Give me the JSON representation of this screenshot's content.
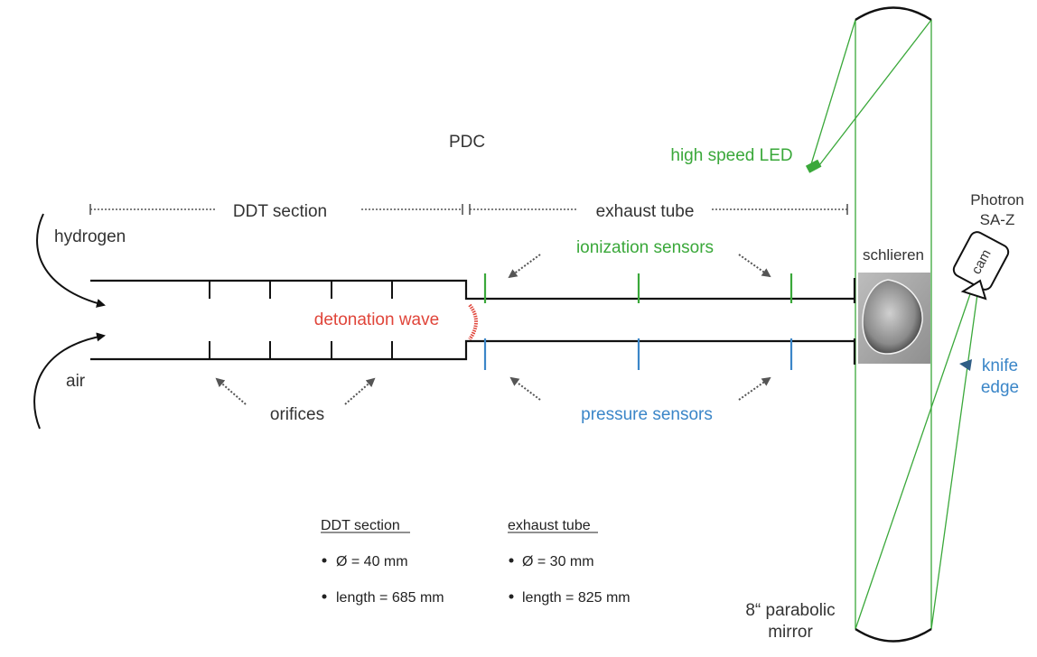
{
  "labels": {
    "pdc": "PDC",
    "ddt_section": "DDT section",
    "exhaust_tube": "exhaust tube",
    "hydrogen": "hydrogen",
    "air": "air",
    "detonation_wave": "detonation wave",
    "orifices": "orifices",
    "ionization_sensors": "ionization sensors",
    "pressure_sensors": "pressure sensors",
    "high_speed_led": "high speed LED",
    "schlieren": "schlieren",
    "camera_line1": "Photron",
    "camera_line2": "SA-Z",
    "cam": "cam",
    "knife_line1": "knife",
    "knife_line2": "edge",
    "mirror_line1": "8“ parabolic",
    "mirror_line2": "mirror"
  },
  "specs": {
    "ddt": {
      "title": "DDT section",
      "diameter": "Ø = 40 mm",
      "length": "length = 685 mm"
    },
    "exhaust": {
      "title": "exhaust tube",
      "diameter": "Ø = 30 mm",
      "length": "length = 825 mm"
    }
  },
  "colors": {
    "tube": "#111111",
    "green": "#3aa83a",
    "blue": "#3b86c8",
    "red": "#e0453a",
    "text": "#333333",
    "dotted": "#555555"
  }
}
